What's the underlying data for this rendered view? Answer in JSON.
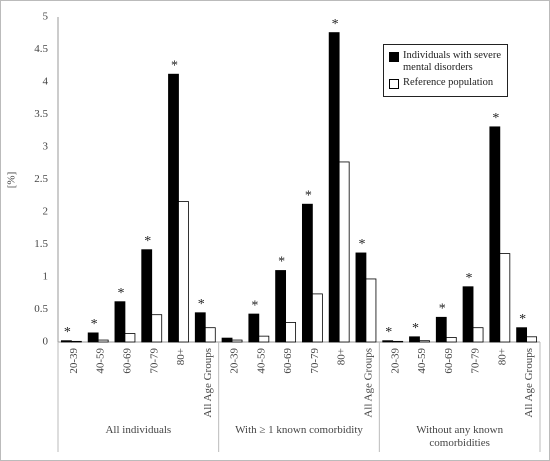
{
  "chart_data": {
    "type": "grouped-bar",
    "y_label": "[%]",
    "ylim": [
      0,
      5
    ],
    "yticks": [
      0,
      0.5,
      1,
      1.5,
      2,
      2.5,
      3,
      3.5,
      4,
      4.5,
      5
    ],
    "grid": false,
    "legend_position": "top-right",
    "groups": [
      {
        "label": "All individuals",
        "categories": [
          "20-39",
          "40-59",
          "60-69",
          "70-79",
          "80+",
          "All Age Groups"
        ]
      },
      {
        "label": "With ≥ 1 known comorbidity",
        "categories": [
          "20-39",
          "40-59",
          "60-69",
          "70-79",
          "80+",
          "All Age Groups"
        ]
      },
      {
        "label": "Without any known comorbidities",
        "categories": [
          "20-39",
          "40-59",
          "60-69",
          "70-79",
          "80+",
          "All Age Groups"
        ]
      }
    ],
    "series": [
      {
        "name": "Individuals with severe mental disorders",
        "color": "#000000",
        "values": [
          0.02,
          0.14,
          0.62,
          1.42,
          4.12,
          0.45,
          0.06,
          0.43,
          1.1,
          2.12,
          4.76,
          1.37,
          0.02,
          0.08,
          0.38,
          0.85,
          3.31,
          0.22
        ],
        "markers": [
          "*",
          "*",
          "*",
          "*",
          "*",
          "*",
          null,
          "*",
          "*",
          "*",
          "*",
          "*",
          "*",
          "*",
          "*",
          "*",
          "*",
          "*"
        ]
      },
      {
        "name": "Reference population",
        "color": "#ffffff",
        "values": [
          0.01,
          0.03,
          0.13,
          0.42,
          2.16,
          0.22,
          0.03,
          0.09,
          0.3,
          0.74,
          2.77,
          0.97,
          0.01,
          0.02,
          0.07,
          0.22,
          1.36,
          0.08
        ]
      }
    ]
  }
}
